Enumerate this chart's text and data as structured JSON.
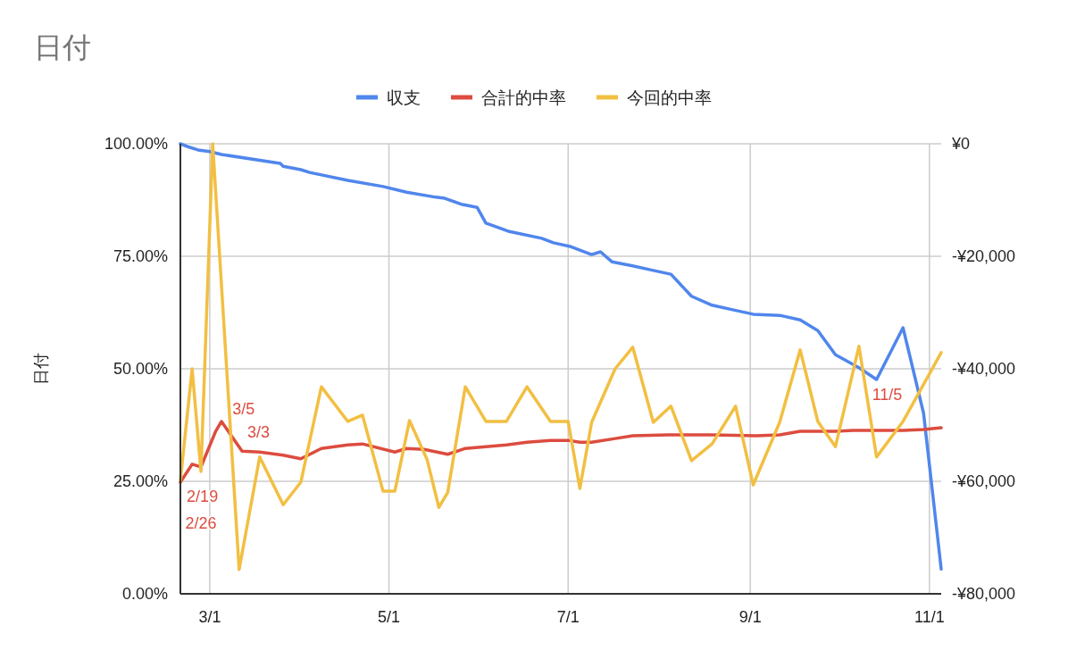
{
  "chart_data": {
    "type": "line",
    "title": "日付",
    "ylabel": "日付",
    "legend": "top",
    "grid": true,
    "xlim": [
      "--02-19",
      "--11-05"
    ],
    "xticks": [
      {
        "value": "--03-01",
        "label": "3/1"
      },
      {
        "value": "--05-01",
        "label": "5/1"
      },
      {
        "value": "--07-01",
        "label": "7/1"
      },
      {
        "value": "--09-01",
        "label": "9/1"
      },
      {
        "value": "--11-01",
        "label": "11/1"
      }
    ],
    "ylim": [
      0,
      100
    ],
    "yticks": [
      {
        "value": 0,
        "label": "0.00%"
      },
      {
        "value": 25,
        "label": "25.00%"
      },
      {
        "value": 50,
        "label": "50.00%"
      },
      {
        "value": 75,
        "label": "75.00%"
      },
      {
        "value": 100,
        "label": "100.00%"
      }
    ],
    "y2lim": [
      -80000,
      0
    ],
    "y2ticks": [
      {
        "value": -80000,
        "label": "-¥80,000"
      },
      {
        "value": -60000,
        "label": "-¥60,000"
      },
      {
        "value": -40000,
        "label": "-¥40,000"
      },
      {
        "value": -20000,
        "label": "-¥20,000"
      },
      {
        "value": 0,
        "label": "¥0"
      }
    ],
    "series": [
      {
        "name": "収支",
        "color": "#5086ec",
        "axis": "y2",
        "x": [
          "--02-19",
          "--02-22",
          "--02-25",
          "--03-01",
          "--03-05",
          "--03-25",
          "--03-26",
          "--04-01",
          "--04-04",
          "--04-17",
          "--04-29",
          "--05-07",
          "--05-17",
          "--05-20",
          "--05-26",
          "--05-28",
          "--05-31",
          "--06-03",
          "--06-11",
          "--06-22",
          "--06-26",
          "--07-02",
          "--07-09",
          "--07-12",
          "--07-16",
          "--07-23",
          "--07-29",
          "--08-05",
          "--08-12",
          "--08-19",
          "--08-26",
          "--09-02",
          "--09-11",
          "--09-18",
          "--09-24",
          "--09-30",
          "--10-08",
          "--10-14",
          "--10-23",
          "--10-30",
          "--11-05"
        ],
        "values": [
          0,
          -600,
          -1100,
          -1400,
          -1900,
          -3500,
          -4000,
          -4600,
          -5100,
          -6500,
          -7600,
          -8600,
          -9500,
          -9700,
          -10800,
          -11000,
          -11300,
          -14100,
          -15600,
          -16800,
          -17600,
          -18300,
          -19700,
          -19200,
          -21000,
          -21700,
          -22400,
          -23200,
          -27100,
          -28700,
          -29500,
          -30300,
          -30500,
          -31300,
          -33200,
          -37500,
          -39800,
          -41900,
          -32700,
          -47900,
          -75600
        ]
      },
      {
        "name": "合計的中率",
        "color": "#dc4c3f",
        "x": [
          "--02-19",
          "--02-23",
          "--02-26",
          "--03-03",
          "--03-05",
          "--03-12",
          "--03-18",
          "--03-26",
          "--04-01",
          "--04-08",
          "--04-17",
          "--04-22",
          "--05-03",
          "--05-07",
          "--05-13",
          "--05-21",
          "--05-27",
          "--06-03",
          "--06-10",
          "--06-17",
          "--06-25",
          "--07-01",
          "--07-05",
          "--07-09",
          "--07-17",
          "--07-23",
          "--08-04",
          "--08-19",
          "--09-03",
          "--09-11",
          "--09-18",
          "--09-30",
          "--10-06",
          "--10-23",
          "--10-30",
          "--11-05"
        ],
        "values": [
          24.8,
          28.8,
          28.2,
          36.1,
          38.3,
          31.7,
          31.5,
          30.8,
          30,
          32.3,
          33.1,
          33.3,
          31.5,
          32.3,
          32.1,
          31,
          32.3,
          32.7,
          33.1,
          33.7,
          34.1,
          34.1,
          33.7,
          33.7,
          34.5,
          35.1,
          35.3,
          35.3,
          35.1,
          35.3,
          36.1,
          36.1,
          36.3,
          36.3,
          36.5,
          36.9
        ]
      },
      {
        "name": "今回的中率",
        "color": "#f2bf42",
        "x": [
          "--02-19",
          "--02-23",
          "--02-26",
          "--03-02",
          "--03-11",
          "--03-18",
          "--03-26",
          "--04-01",
          "--04-08",
          "--04-17",
          "--04-22",
          "--04-29",
          "--05-03",
          "--05-08",
          "--05-14",
          "--05-18",
          "--05-21",
          "--05-27",
          "--06-03",
          "--06-10",
          "--06-17",
          "--06-25",
          "--07-01",
          "--07-05",
          "--07-09",
          "--07-17",
          "--07-23",
          "--07-30",
          "--08-05",
          "--08-12",
          "--08-19",
          "--08-27",
          "--09-02",
          "--09-11",
          "--09-18",
          "--09-24",
          "--09-30",
          "--10-08",
          "--10-14",
          "--10-23",
          "--11-05"
        ],
        "values": [
          25.2,
          50,
          27.2,
          100,
          5.4,
          30.4,
          19.8,
          24.8,
          46,
          38.3,
          39.7,
          22.8,
          22.8,
          38.5,
          29.8,
          19.2,
          22.5,
          46,
          38.3,
          38.3,
          46,
          38.3,
          38.3,
          23.4,
          38.1,
          50,
          54.8,
          38.1,
          41.7,
          29.6,
          33.3,
          41.7,
          24.2,
          38.1,
          54.2,
          38.3,
          32.7,
          55,
          30.4,
          38.3,
          53.6
        ]
      }
    ],
    "annotations": [
      {
        "text": "2/19",
        "x": "--02-19",
        "y": 24.8
      },
      {
        "text": "2/26",
        "x": "--02-26",
        "y": 28.2
      },
      {
        "text": "3/3",
        "x": "--03-03",
        "y": 36.1
      },
      {
        "text": "3/5",
        "x": "--03-05",
        "y": 38.3
      },
      {
        "text": "11/5",
        "x": "--11-05",
        "y": 36.9
      }
    ]
  }
}
